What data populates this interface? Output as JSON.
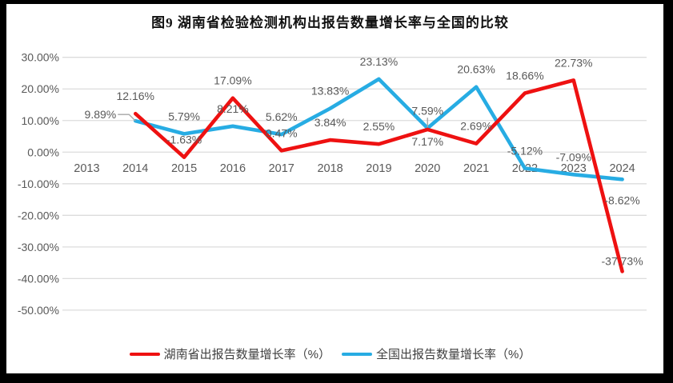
{
  "chart_data": {
    "type": "line",
    "title": "图9 湖南省检验检测机构出报告数量增长率与全国的比较",
    "categories": [
      "2013",
      "2014",
      "2015",
      "2016",
      "2017",
      "2018",
      "2019",
      "2020",
      "2021",
      "2022",
      "2023",
      "2024"
    ],
    "ylim": [
      -50,
      30
    ],
    "y_tick_labels": [
      "30.00%",
      "20.00%",
      "10.00%",
      "0.00%",
      "-10.00%",
      "-20.00%",
      "-30.00%",
      "-40.00%",
      "-50.00%"
    ],
    "grid": true,
    "legend_position": "bottom",
    "colors": {
      "grid": "#dcdcdc",
      "axis_text": "#595959",
      "data_label_text": "#595959",
      "leader": "#a6a6a6",
      "frame": "#000000",
      "plot_background": "#ffffff"
    },
    "series": [
      {
        "name": "湖南省出报告数量增长率（%）",
        "color": "#ee1111",
        "points": [
          {
            "x": "2014",
            "v": 12.16,
            "label": "12.16%",
            "place": "above"
          },
          {
            "x": "2015",
            "v": -1.63,
            "label": "-1.63%",
            "place": "above"
          },
          {
            "x": "2016",
            "v": 17.09,
            "label": "17.09%",
            "place": "above"
          },
          {
            "x": "2017",
            "v": 0.47,
            "label": "0.47%",
            "place": "above"
          },
          {
            "x": "2018",
            "v": 3.84,
            "label": "3.84%",
            "place": "above"
          },
          {
            "x": "2019",
            "v": 2.55,
            "label": "2.55%",
            "place": "above"
          },
          {
            "x": "2020",
            "v": 7.17,
            "label": "7.17%",
            "place": "below"
          },
          {
            "x": "2021",
            "v": 2.69,
            "label": "2.69%",
            "place": "above"
          },
          {
            "x": "2022",
            "v": 18.66,
            "label": "18.66%",
            "place": "above"
          },
          {
            "x": "2023",
            "v": 22.73,
            "label": "22.73%",
            "place": "above"
          },
          {
            "x": "2024",
            "v": -37.73,
            "label": "-37.73%",
            "place": "near-above"
          }
        ]
      },
      {
        "name": "全国出报告数量增长率（%）",
        "color": "#27ace3",
        "points": [
          {
            "x": "2014",
            "v": 9.89,
            "label": "9.89%",
            "place": "left-leader"
          },
          {
            "x": "2015",
            "v": 5.79,
            "label": "5.79%",
            "place": "above"
          },
          {
            "x": "2016",
            "v": 8.21,
            "label": "8.21%",
            "place": "above"
          },
          {
            "x": "2017",
            "v": 5.62,
            "label": "5.62%",
            "place": "above"
          },
          {
            "x": "2018",
            "v": 13.83,
            "label": "13.83%",
            "place": "above"
          },
          {
            "x": "2019",
            "v": 23.13,
            "label": "23.13%",
            "place": "above"
          },
          {
            "x": "2020",
            "v": 7.59,
            "label": "7.59%",
            "place": "above-leader"
          },
          {
            "x": "2021",
            "v": 20.63,
            "label": "20.63%",
            "place": "above"
          },
          {
            "x": "2022",
            "v": -5.12,
            "label": "-5.12%",
            "place": "above"
          },
          {
            "x": "2023",
            "v": -7.09,
            "label": "-7.09%",
            "place": "above"
          },
          {
            "x": "2024",
            "v": -8.62,
            "label": "-8.62%",
            "place": "below-far"
          }
        ]
      }
    ]
  }
}
